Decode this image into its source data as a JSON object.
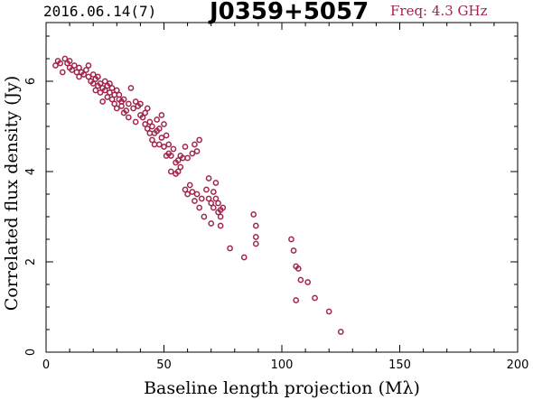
{
  "header": {
    "date": "2016.06.14(7)",
    "source": "J0359+5057",
    "frequency": "Freq: 4.3 GHz"
  },
  "colors": {
    "points": "#a0254a",
    "axes": "#000000"
  },
  "chart_data": {
    "type": "scatter",
    "xlabel": "Baseline length projection (Mλ)",
    "ylabel": "Correlated flux density (Jy)",
    "xlim": [
      0,
      200
    ],
    "ylim": [
      0,
      7.3
    ],
    "xticks": [
      0,
      50,
      100,
      150,
      200
    ],
    "yticks": [
      0,
      2,
      4,
      6
    ],
    "xtick_labels": [
      "0",
      "50",
      "100",
      "150",
      "200"
    ],
    "ytick_labels": [
      "0",
      "2",
      "4",
      "6"
    ],
    "grid": false,
    "points": [
      [
        4,
        6.35
      ],
      [
        5,
        6.45
      ],
      [
        6,
        6.4
      ],
      [
        7,
        6.2
      ],
      [
        8,
        6.5
      ],
      [
        9,
        6.4
      ],
      [
        10,
        6.3
      ],
      [
        10,
        6.45
      ],
      [
        11,
        6.25
      ],
      [
        12,
        6.35
      ],
      [
        13,
        6.2
      ],
      [
        14,
        6.3
      ],
      [
        14,
        6.1
      ],
      [
        15,
        6.2
      ],
      [
        16,
        6.15
      ],
      [
        17,
        6.25
      ],
      [
        18,
        6.1
      ],
      [
        18,
        6.35
      ],
      [
        19,
        6.0
      ],
      [
        20,
        6.15
      ],
      [
        20,
        5.95
      ],
      [
        21,
        6.05
      ],
      [
        21,
        5.8
      ],
      [
        22,
        6.1
      ],
      [
        22,
        5.9
      ],
      [
        23,
        5.95
      ],
      [
        23,
        5.75
      ],
      [
        24,
        5.85
      ],
      [
        24,
        5.55
      ],
      [
        25,
        6.0
      ],
      [
        25,
        5.8
      ],
      [
        26,
        5.9
      ],
      [
        26,
        5.65
      ],
      [
        27,
        5.95
      ],
      [
        27,
        5.75
      ],
      [
        28,
        5.6
      ],
      [
        28,
        5.85
      ],
      [
        29,
        5.5
      ],
      [
        29,
        5.7
      ],
      [
        30,
        5.8
      ],
      [
        30,
        5.4
      ],
      [
        31,
        5.6
      ],
      [
        31,
        5.7
      ],
      [
        32,
        5.45
      ],
      [
        32,
        5.55
      ],
      [
        33,
        5.3
      ],
      [
        33,
        5.6
      ],
      [
        34,
        5.35
      ],
      [
        35,
        5.5
      ],
      [
        35,
        5.2
      ],
      [
        36,
        5.85
      ],
      [
        37,
        5.4
      ],
      [
        38,
        5.1
      ],
      [
        38,
        5.55
      ],
      [
        39,
        5.45
      ],
      [
        40,
        5.25
      ],
      [
        40,
        5.5
      ],
      [
        41,
        5.2
      ],
      [
        42,
        5.3
      ],
      [
        42,
        5.05
      ],
      [
        43,
        5.4
      ],
      [
        43,
        4.95
      ],
      [
        44,
        5.1
      ],
      [
        44,
        4.85
      ],
      [
        45,
        5.0
      ],
      [
        45,
        4.7
      ],
      [
        46,
        4.85
      ],
      [
        46,
        4.6
      ],
      [
        47,
        4.9
      ],
      [
        47,
        5.15
      ],
      [
        48,
        4.6
      ],
      [
        48,
        4.95
      ],
      [
        49,
        5.25
      ],
      [
        49,
        4.75
      ],
      [
        50,
        5.05
      ],
      [
        50,
        4.55
      ],
      [
        51,
        4.8
      ],
      [
        51,
        4.35
      ],
      [
        52,
        4.6
      ],
      [
        52,
        4.4
      ],
      [
        53,
        4.0
      ],
      [
        53,
        4.35
      ],
      [
        54,
        4.5
      ],
      [
        55,
        4.2
      ],
      [
        55,
        3.95
      ],
      [
        56,
        4.25
      ],
      [
        56,
        4.0
      ],
      [
        57,
        4.35
      ],
      [
        57,
        4.1
      ],
      [
        58,
        4.3
      ],
      [
        59,
        4.55
      ],
      [
        59,
        3.6
      ],
      [
        60,
        3.5
      ],
      [
        60,
        4.3
      ],
      [
        61,
        3.7
      ],
      [
        62,
        3.55
      ],
      [
        62,
        4.4
      ],
      [
        63,
        4.6
      ],
      [
        63,
        3.35
      ],
      [
        64,
        3.5
      ],
      [
        64,
        4.45
      ],
      [
        65,
        3.2
      ],
      [
        65,
        4.7
      ],
      [
        66,
        3.4
      ],
      [
        67,
        3.0
      ],
      [
        68,
        3.6
      ],
      [
        69,
        3.85
      ],
      [
        69,
        3.4
      ],
      [
        70,
        3.3
      ],
      [
        70,
        2.85
      ],
      [
        71,
        3.55
      ],
      [
        71,
        3.2
      ],
      [
        72,
        3.4
      ],
      [
        72,
        3.75
      ],
      [
        73,
        3.3
      ],
      [
        73,
        3.1
      ],
      [
        74,
        3.15
      ],
      [
        74,
        3.0
      ],
      [
        74,
        2.8
      ],
      [
        75,
        3.2
      ],
      [
        78,
        2.3
      ],
      [
        84,
        2.1
      ],
      [
        88,
        3.05
      ],
      [
        89,
        2.8
      ],
      [
        89,
        2.55
      ],
      [
        89,
        2.4
      ],
      [
        104,
        2.5
      ],
      [
        105,
        2.25
      ],
      [
        106,
        1.9
      ],
      [
        106,
        1.15
      ],
      [
        107,
        1.85
      ],
      [
        108,
        1.6
      ],
      [
        111,
        1.55
      ],
      [
        114,
        1.2
      ],
      [
        120,
        0.9
      ],
      [
        125,
        0.45
      ]
    ]
  }
}
